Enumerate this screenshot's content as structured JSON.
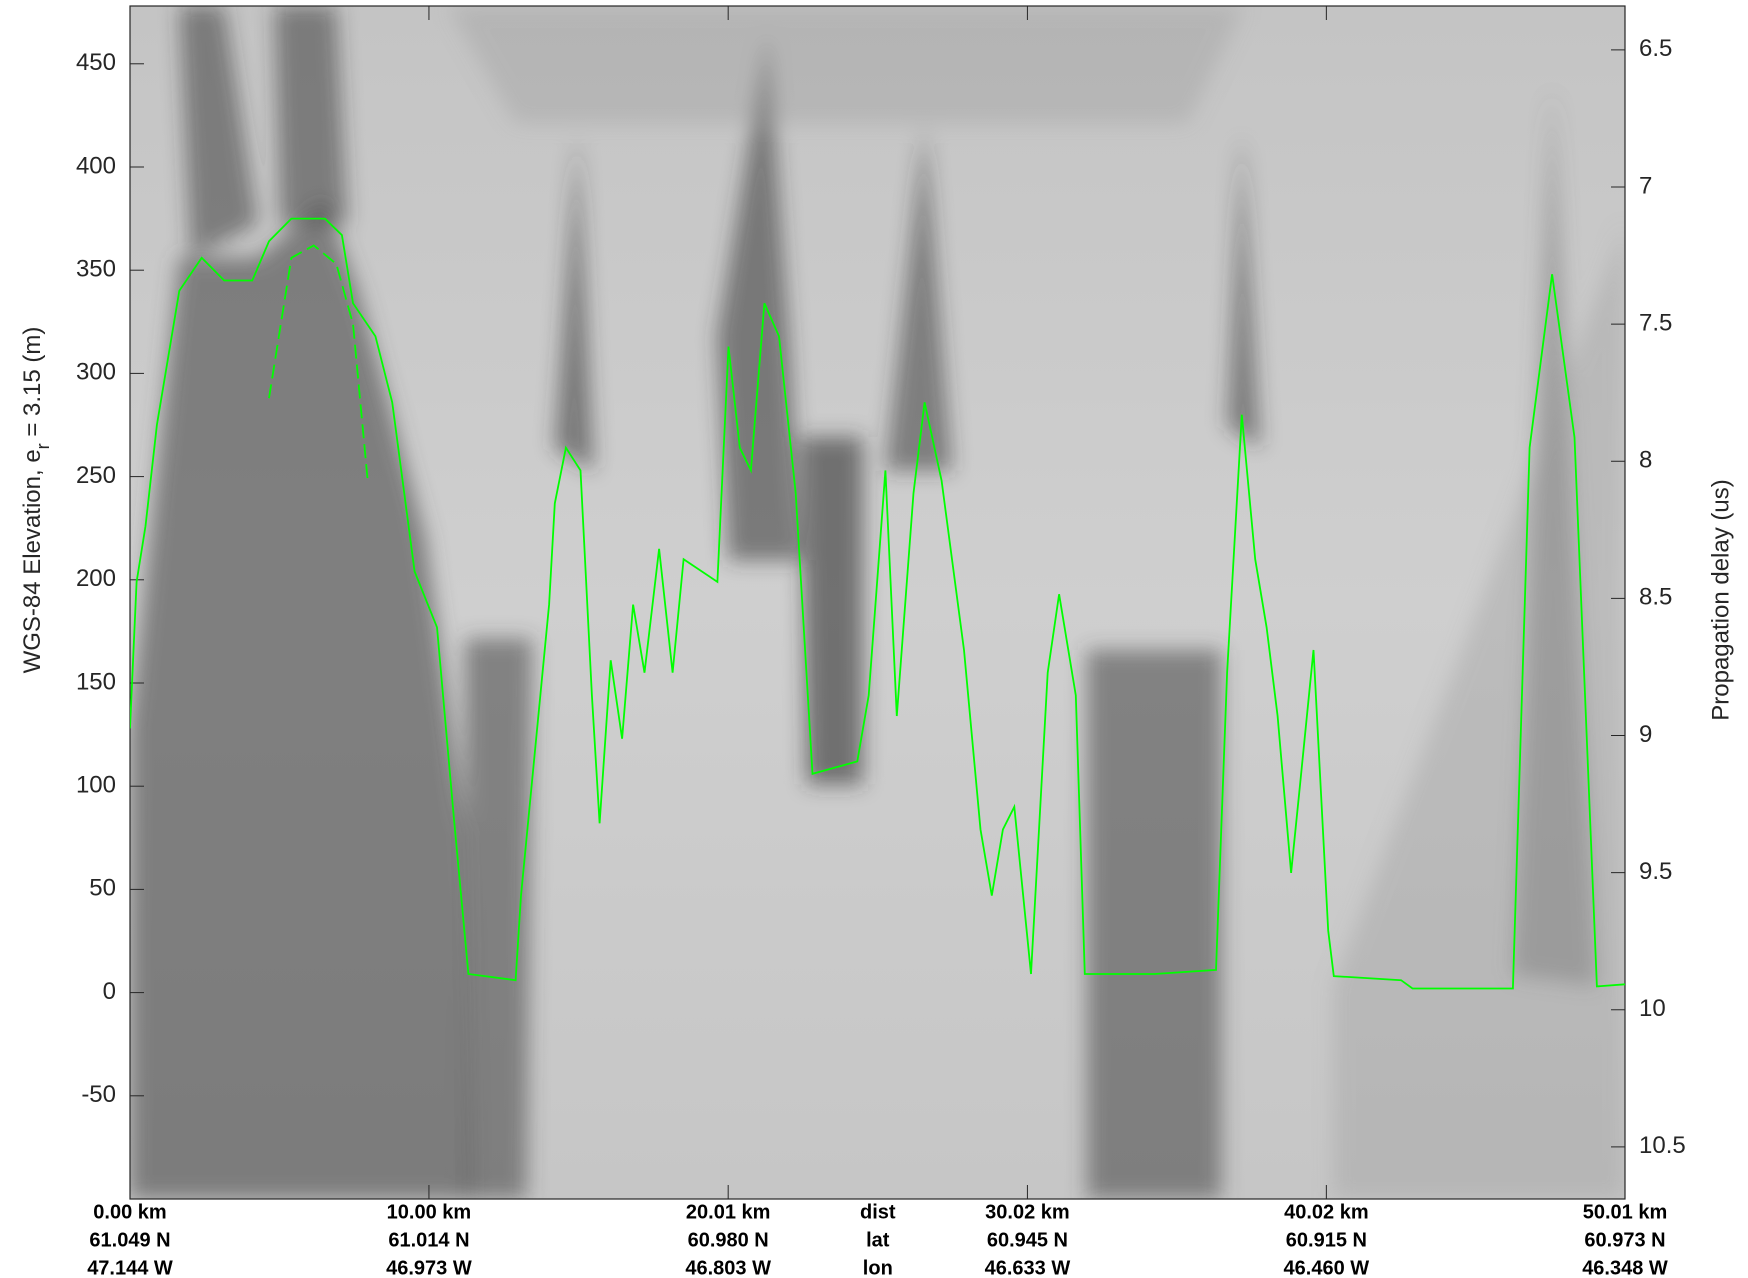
{
  "chart_data": {
    "type": "line",
    "ylabel": [
      "WGS-84 Elevation, e",
      "r",
      " = 3.15 (m)"
    ],
    "y2label": "Propagation delay (us)",
    "xlim": [
      0,
      50.01
    ],
    "ylim": [
      -100,
      478
    ],
    "y2lim": [
      10.69,
      6.34
    ],
    "yticks": [
      -50,
      0,
      50,
      100,
      150,
      200,
      250,
      300,
      350,
      400,
      450
    ],
    "y2ticks": [
      6.5,
      7,
      7.5,
      8,
      8.5,
      9,
      9.5,
      10,
      10.5
    ],
    "xticks": [
      {
        "value": 0,
        "label": "0.00 km"
      },
      {
        "value": 10,
        "label": "10.00 km"
      },
      {
        "value": 20.01,
        "label": "20.01 km"
      },
      {
        "value": 30.02,
        "label": "30.02 km"
      },
      {
        "value": 40.02,
        "label": "40.02 km"
      },
      {
        "value": 50.01,
        "label": "50.01 km"
      }
    ],
    "lat_labels": [
      "61.049 N",
      "61.014 N",
      "60.980 N",
      "60.945 N",
      "60.915 N",
      "60.973 N"
    ],
    "lon_labels": [
      "47.144 W",
      "46.973 W",
      "46.803 W",
      "46.633 W",
      "46.460 W",
      "46.348 W"
    ],
    "row_labels": [
      "dist",
      "lat",
      "lon"
    ],
    "series": [
      {
        "color": "#00ff00",
        "style": "solid",
        "x": [
          0,
          0.22,
          0.52,
          0.9,
          1.65,
          2.4,
          3.15,
          4.09,
          4.65,
          5.4,
          6.52,
          7.09,
          7.46,
          8.21,
          8.77,
          9.52,
          10.27,
          10.83,
          11.32,
          12.9,
          13.08,
          14.02,
          14.21,
          14.58,
          15.07,
          15.45,
          15.71,
          16.08,
          16.46,
          16.83,
          17.21,
          17.7,
          18.15,
          18.52,
          19.65,
          20.02,
          20.4,
          20.77,
          21.22,
          21.71,
          22.27,
          22.83,
          24.33,
          24.71,
          25.27,
          25.65,
          26.21,
          26.58,
          27.15,
          27.9,
          28.45,
          28.83,
          29.2,
          29.58,
          30.14,
          30.7,
          31.08,
          31.64,
          31.94,
          34.27,
          36.33,
          36.7,
          37.19,
          37.64,
          38.02,
          38.39,
          38.84,
          39.14,
          39.59,
          40.08,
          40.27,
          42.52,
          42.9,
          46.26,
          46.82,
          47.57,
          48.32,
          49.07,
          50.01
        ],
        "values": [
          128,
          199,
          226,
          275,
          340,
          356,
          345,
          345,
          364,
          375,
          375,
          367,
          334,
          318,
          286,
          204,
          177,
          85,
          9,
          6,
          47,
          188,
          237,
          264,
          253,
          144,
          82,
          161,
          123,
          188,
          155,
          215,
          155,
          210,
          199,
          313,
          264,
          253,
          334,
          318,
          242,
          106,
          112,
          144,
          253,
          134,
          242,
          286,
          248,
          166,
          79,
          47,
          79,
          90,
          9,
          155,
          193,
          144,
          9,
          9,
          11,
          155,
          280,
          210,
          177,
          134,
          58,
          101,
          166,
          30,
          8,
          6,
          2,
          2,
          264,
          348,
          269,
          3,
          4
        ]
      },
      {
        "color": "#00ff00",
        "style": "dashed",
        "x": [
          4.65,
          5.4,
          6.15,
          6.9,
          7.46,
          7.95
        ],
        "values": [
          288,
          356,
          362,
          353,
          324,
          248
        ]
      }
    ]
  }
}
